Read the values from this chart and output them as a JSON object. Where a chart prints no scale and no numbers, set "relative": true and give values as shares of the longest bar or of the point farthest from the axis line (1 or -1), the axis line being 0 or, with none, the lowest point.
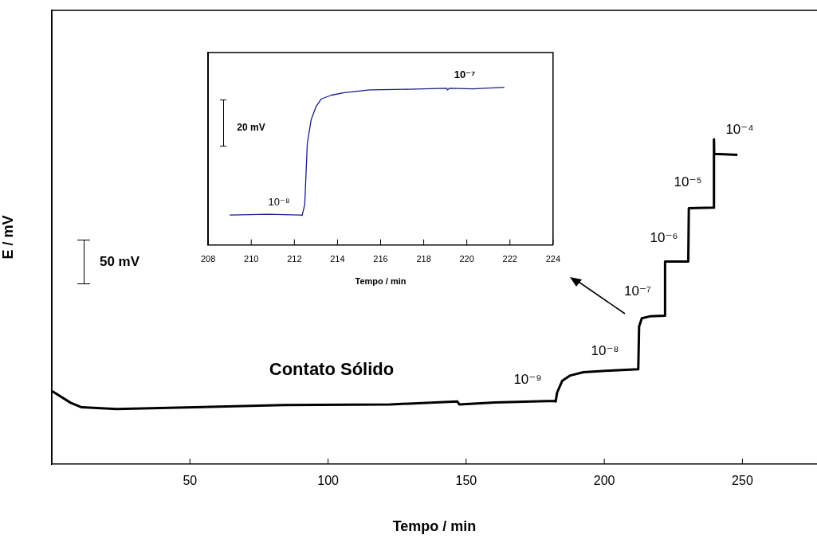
{
  "chart_data": [
    {
      "type": "line",
      "xlabel": "Tempo / min",
      "ylabel": "E / mV",
      "relative": true,
      "xlim": [
        0,
        277
      ],
      "xticks": [
        50,
        100,
        150,
        200,
        250
      ],
      "marker": "none",
      "series": [
        {
          "color": "#000000",
          "x": [
            0.1,
            6.8,
            10.8,
            23.5,
            45.4,
            84,
            122.6,
            146.8,
            147.5,
            160.5,
            182.1,
            182.4,
            182.9,
            184.8,
            187.7,
            192.4,
            202.1,
            212.3,
            212.6,
            213.6,
            216.5,
            221.9,
            222.0,
            230.4,
            230.6,
            239.5,
            239.7,
            239.8,
            248.2
          ],
          "values": [
            0.225,
            0.189,
            0.175,
            0.17,
            0.174,
            0.182,
            0.184,
            0.193,
            0.184,
            0.19,
            0.195,
            0.193,
            0.22,
            0.257,
            0.273,
            0.283,
            0.288,
            0.292,
            0.424,
            0.449,
            0.455,
            0.457,
            0.624,
            0.624,
            0.788,
            0.79,
            1,
            0.955,
            0.952
          ]
        }
      ],
      "annotations": [
        "50 mV",
        "Contato Sólido",
        "10⁻⁹",
        "10⁻⁸",
        "10⁻⁷",
        "10⁻⁶",
        "10⁻⁵",
        "10⁻⁴"
      ]
    },
    {
      "type": "line",
      "xlabel": "Tempo / min",
      "relative": true,
      "xlim": [
        208,
        224
      ],
      "xticks": [
        208,
        210,
        212,
        214,
        216,
        218,
        220,
        222,
        224
      ],
      "marker": "none",
      "series": [
        {
          "color": "#1a1a8c",
          "x": [
            209.0,
            210.76,
            212.3,
            212.36,
            212.48,
            212.6,
            212.78,
            213.01,
            213.25,
            213.72,
            214.32,
            215.51,
            217.29,
            219.07,
            219.1,
            219.19,
            220.26,
            221.74
          ],
          "values": [
            0.19,
            0.195,
            0.19,
            0.187,
            0.257,
            0.644,
            0.795,
            0.879,
            0.926,
            0.95,
            0.966,
            0.983,
            0.987,
            0.993,
            0.983,
            0.993,
            0.99,
            1
          ]
        }
      ],
      "annotations": [
        "20 mV",
        "10⁻⁸",
        "10⁻⁷"
      ]
    }
  ]
}
